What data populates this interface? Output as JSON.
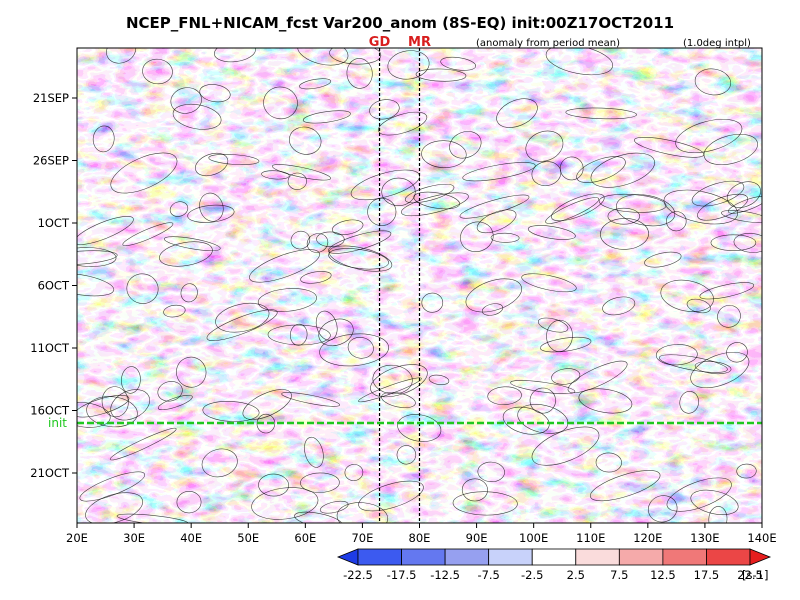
{
  "chart_data": {
    "type": "heatmap",
    "title": "NCEP_FNL+NICAM_fcst Var200_anom (8S-EQ) init:00Z17OCT2011",
    "notes": [
      "(anomaly from period mean)",
      "(1.0deg intpl)"
    ],
    "x_axis": {
      "range": [
        20,
        140
      ],
      "ticks": [
        20,
        30,
        40,
        50,
        60,
        70,
        80,
        90,
        100,
        110,
        120,
        130,
        140
      ],
      "tick_labels": [
        "20E",
        "30E",
        "40E",
        "50E",
        "60E",
        "70E",
        "80E",
        "90E",
        "100E",
        "110E",
        "120E",
        "130E",
        "140E"
      ]
    },
    "y_axis": {
      "range_dates": [
        "2011-09-17",
        "2011-10-25"
      ],
      "ticks": [
        "2011-09-21",
        "2011-09-26",
        "2011-10-01",
        "2011-10-06",
        "2011-10-11",
        "2011-10-16",
        "2011-10-21"
      ],
      "tick_labels": [
        "21SEP",
        "26SEP",
        "1OCT",
        "6OCT",
        "11OCT",
        "16OCT",
        "21OCT"
      ],
      "direction": "time increases downward"
    },
    "markers": [
      {
        "label": "GD",
        "lon": 73
      },
      {
        "label": "MR",
        "lon": 80
      }
    ],
    "init_line": {
      "label": "init",
      "date": "2011-10-17",
      "color": "#1ec81e"
    },
    "colorbar": {
      "levels": [
        "-22.5",
        "-17.5",
        "-12.5",
        "-7.5",
        "-2.5",
        "2.5",
        "7.5",
        "12.5",
        "17.5",
        "22.5"
      ],
      "unit": "[s-1]",
      "colors": [
        "#1e3ce6",
        "#3c5af0",
        "#6478f0",
        "#96a0f0",
        "#c8d2fa",
        "#ffffff",
        "#fadcdc",
        "#f5aaaa",
        "#f07878",
        "#eb4646",
        "#e61e1e"
      ]
    }
  }
}
